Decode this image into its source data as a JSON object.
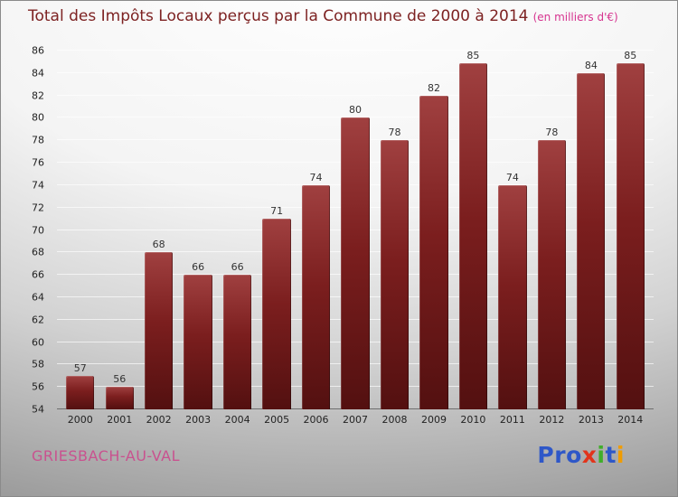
{
  "chart_data": {
    "type": "bar",
    "title": "Total des Impôts Locaux perçus par la Commune de 2000 à 2014",
    "subtitle": "(en milliers d'€)",
    "categories": [
      "2000",
      "2001",
      "2002",
      "2003",
      "2004",
      "2005",
      "2006",
      "2007",
      "2008",
      "2009",
      "2010",
      "2011",
      "2012",
      "2013",
      "2014"
    ],
    "values": [
      57,
      56,
      68,
      66,
      66,
      71,
      74,
      80,
      78,
      82,
      85,
      74,
      78,
      84,
      85
    ],
    "xlabel": "",
    "ylabel": "",
    "ylim": [
      54,
      86
    ],
    "ytick_step": 2,
    "grid": true,
    "legend_position": "none"
  },
  "footer": {
    "commune": "GRIESBACH-AU-VAL",
    "logo": [
      {
        "ch": "P",
        "color": "#2e57c8"
      },
      {
        "ch": "r",
        "color": "#2e57c8"
      },
      {
        "ch": "o",
        "color": "#2e57c8"
      },
      {
        "ch": "x",
        "color": "#e2341b"
      },
      {
        "ch": "i",
        "color": "#3fae29"
      },
      {
        "ch": "t",
        "color": "#2e57c8"
      },
      {
        "ch": "i",
        "color": "#f09c00"
      }
    ]
  },
  "colors": {
    "title": "#7d2222",
    "subtitle": "#d6338f",
    "commune": "#c9528f",
    "bar_top": "#a04040",
    "bar_bottom": "#531010"
  }
}
